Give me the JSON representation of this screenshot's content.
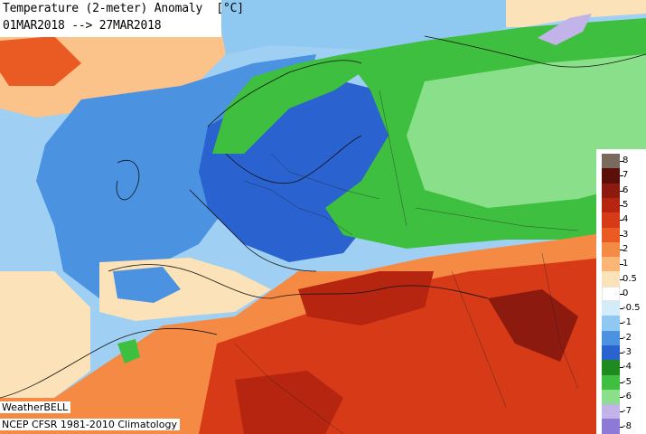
{
  "header": {
    "title": "Temperature (2-meter) Anomaly  [°C]",
    "period": "01MAR2018 --> 27MAR2018"
  },
  "footer": {
    "brand": "WeatherBELL",
    "source": "NCEP CFSR 1981-2010 Climatology"
  },
  "legend": {
    "labels": [
      "8",
      "7",
      "6",
      "5",
      "4",
      "3",
      "2",
      "1",
      "0.5",
      "0",
      "-0.5",
      "-1",
      "-2",
      "-3",
      "-4",
      "-5",
      "-6",
      "-7",
      "-8"
    ],
    "colors": [
      "#7a6a5e",
      "#5a0f08",
      "#8c1a0e",
      "#b5250f",
      "#d63a17",
      "#ea5a23",
      "#f58a44",
      "#fbb676",
      "#fbe2b8",
      "#ffffff",
      "#d2ecfa",
      "#8fc8f0",
      "#4b92e0",
      "#2a62cf",
      "#1f8a1f",
      "#3fbf3f",
      "#8ae08a",
      "#c2b3e8",
      "#8d79d6"
    ]
  },
  "map": {
    "colors": {
      "cold_strong": "#2a62cf",
      "cold_moderate": "#4b92e0",
      "cold_weak": "#8fc8f0",
      "green_anomaly": "#3fbf3f",
      "green_dark": "#1f8a1f",
      "warm_weak": "#fbe2b8",
      "warm_moderate": "#f58a44",
      "warm_strong": "#d63a17",
      "hot": "#b5250f"
    }
  }
}
